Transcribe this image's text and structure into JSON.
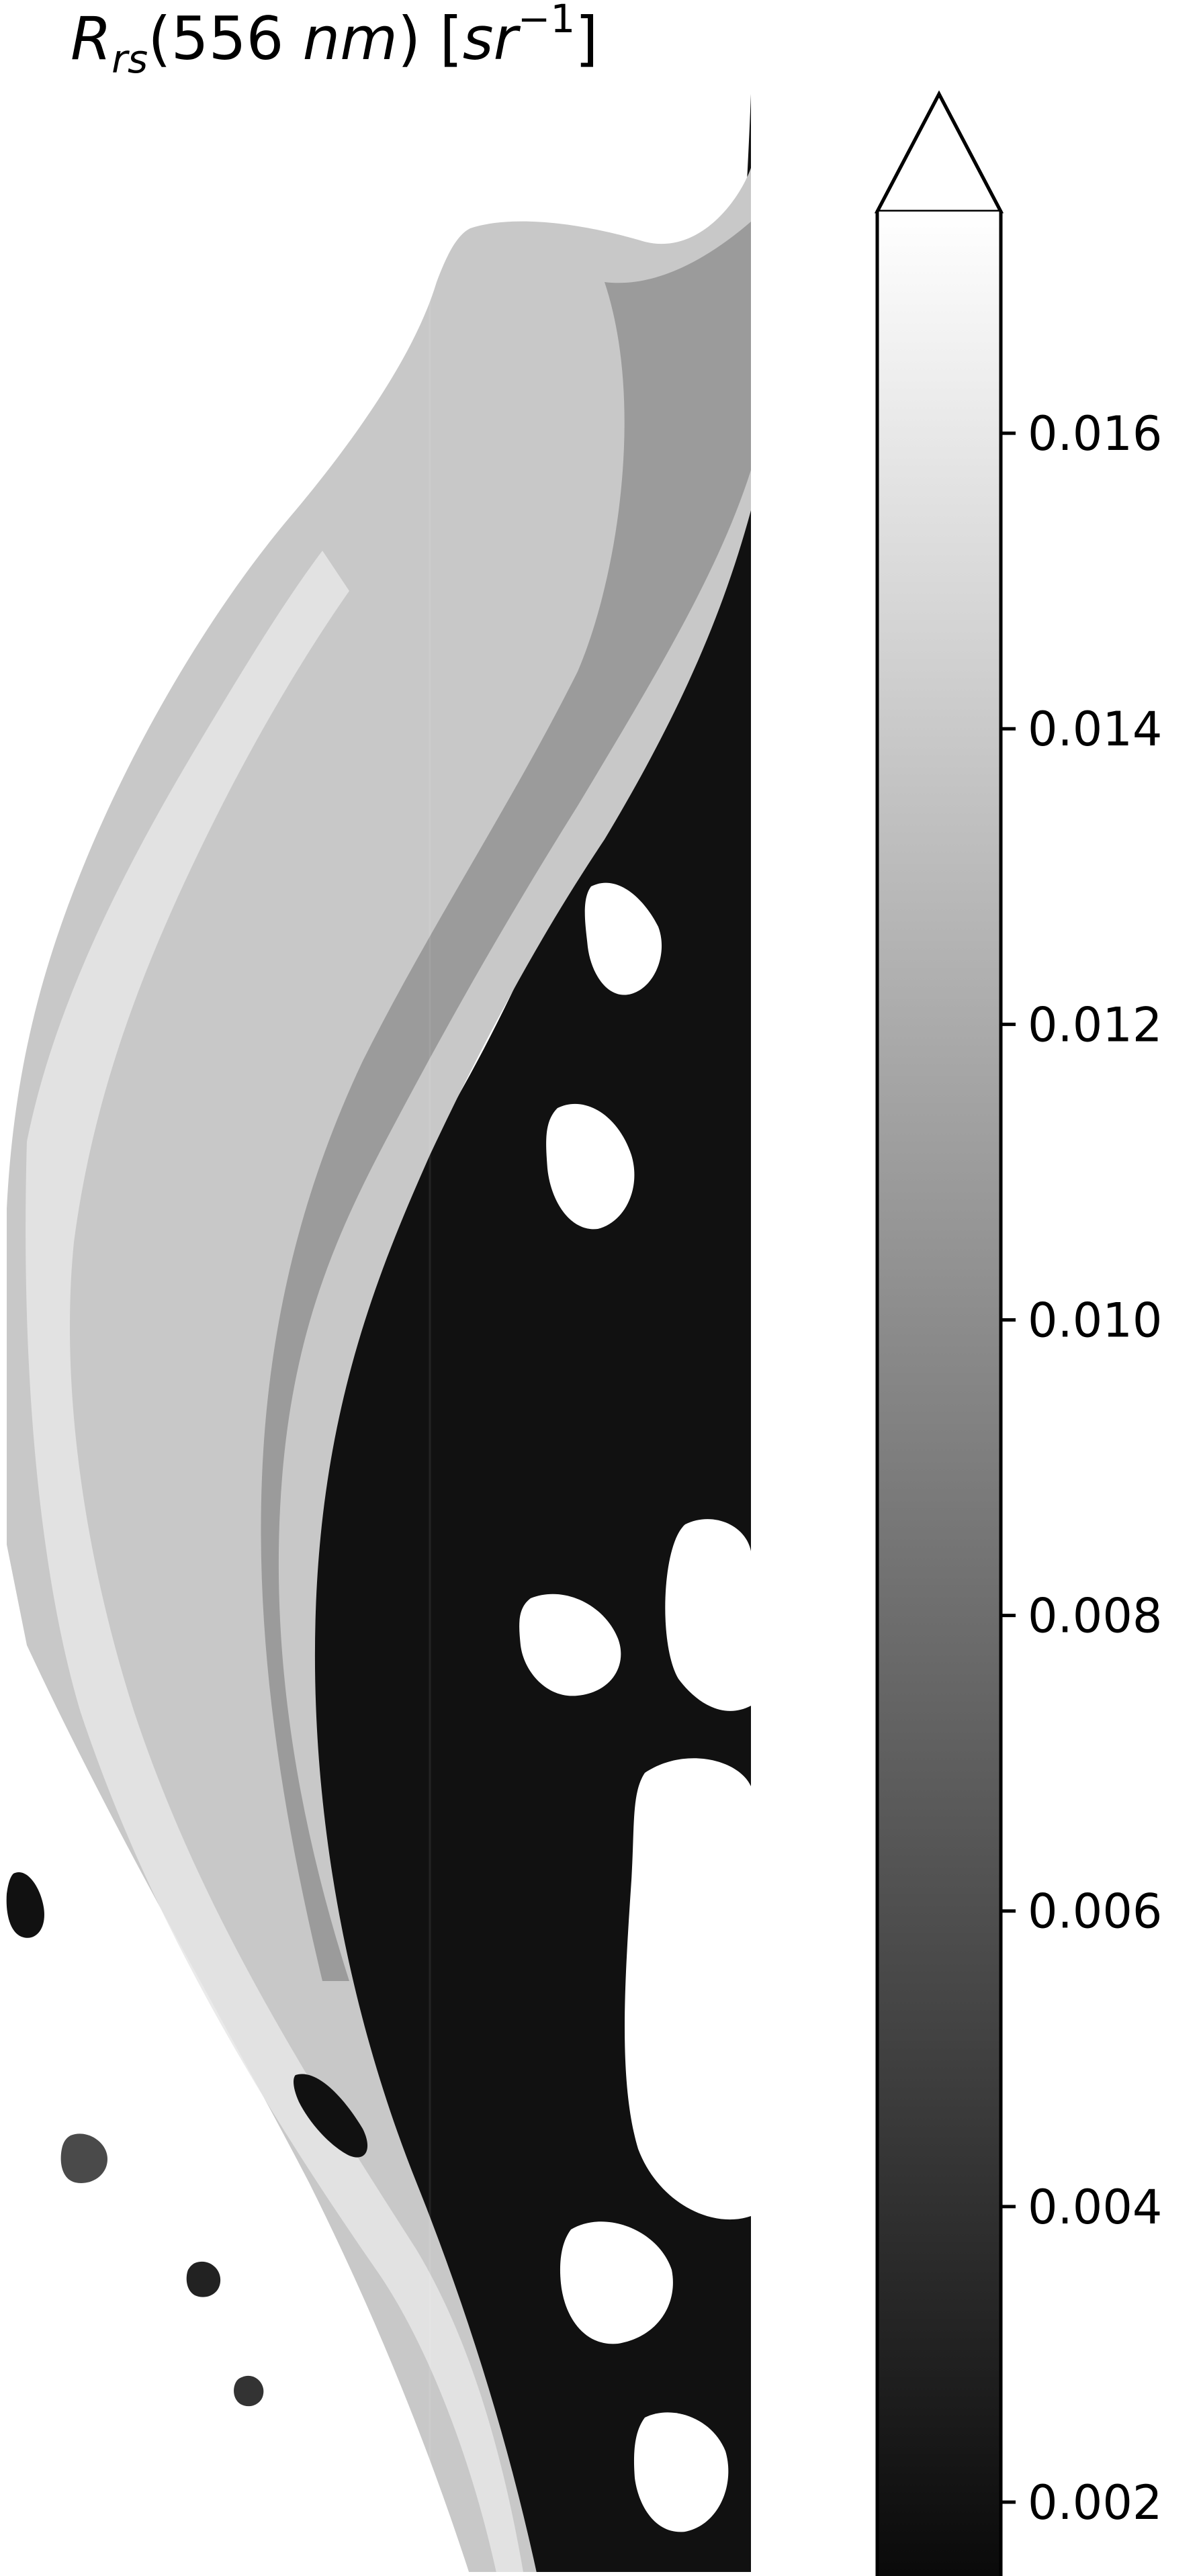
{
  "chart_data": {
    "type": "heatmap",
    "title": {
      "symbol": "R",
      "subscript": "rs",
      "paren_open": "(",
      "wavelength": "556",
      "space": " ",
      "unit": "nm",
      "paren_close": ")",
      "bracket_open": " [",
      "sr": "sr",
      "superscript": "−1",
      "bracket_close": "]"
    },
    "colormap": "grayscale (black to white)",
    "color_low": "#0a0a0a",
    "color_high": "#ffffff",
    "nodata_color": "#ffffff",
    "colorbar": {
      "extend": "max",
      "vmin": 0.0015,
      "vmax": 0.0175,
      "ticks": [
        0.002,
        0.004,
        0.006,
        0.008,
        0.01,
        0.012,
        0.014,
        0.016
      ],
      "tick_labels": [
        "0.002",
        "0.004",
        "0.006",
        "0.008",
        "0.010",
        "0.012",
        "0.014",
        "0.016"
      ]
    }
  }
}
